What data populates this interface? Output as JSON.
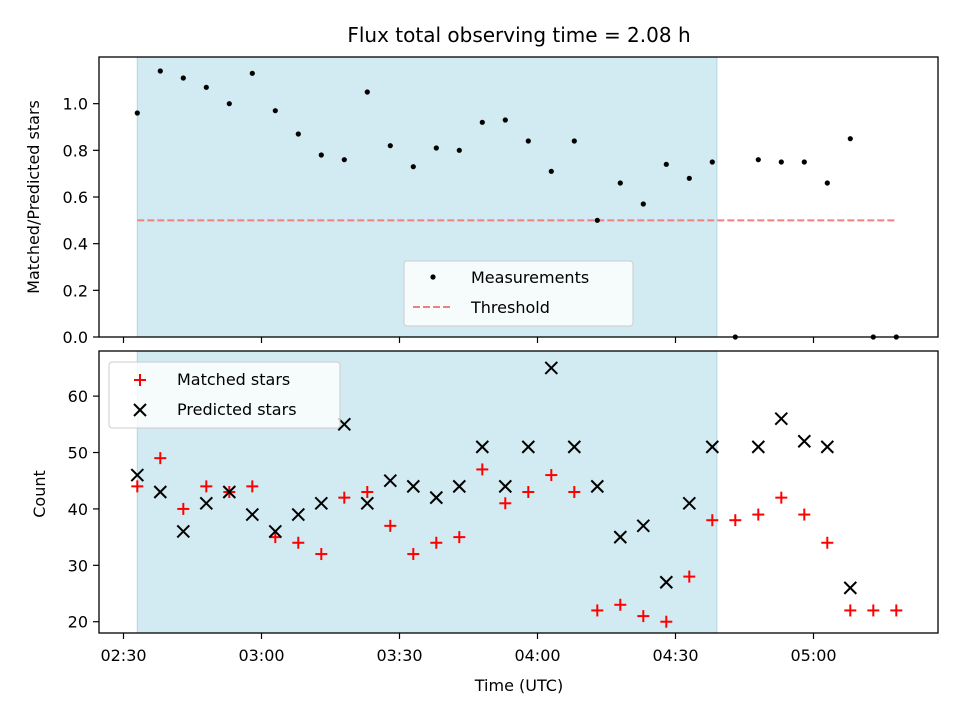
{
  "chart_data": [
    {
      "type": "scatter",
      "title": "Flux total observing time = 2.08 h",
      "xlabel": "",
      "ylabel": "Matched/Predicted stars",
      "ylim": [
        0,
        1.2
      ],
      "yticks": [
        0.0,
        0.2,
        0.4,
        0.6,
        0.8,
        1.0
      ],
      "ytick_labels": [
        "0.0",
        "0.2",
        "0.4",
        "0.6",
        "0.8",
        "1.0"
      ],
      "grid": false,
      "legend_position": "bottom-center",
      "shaded_span": {
        "start": "02:33",
        "end": "04:39",
        "color": "#add8e6"
      },
      "series": [
        {
          "name": "Measurements",
          "marker": "dot",
          "color": "#000000",
          "x": [
            "02:33",
            "02:38",
            "02:43",
            "02:48",
            "02:53",
            "02:58",
            "03:03",
            "03:08",
            "03:13",
            "03:18",
            "03:23",
            "03:28",
            "03:33",
            "03:38",
            "03:43",
            "03:48",
            "03:53",
            "03:58",
            "04:03",
            "04:08",
            "04:13",
            "04:18",
            "04:23",
            "04:28",
            "04:33",
            "04:38",
            "04:43",
            "04:48",
            "04:53",
            "04:58",
            "05:03",
            "05:08",
            "05:13",
            "05:18"
          ],
          "y": [
            0.96,
            1.14,
            1.11,
            1.07,
            1.0,
            1.13,
            0.97,
            0.87,
            0.78,
            0.76,
            1.05,
            0.82,
            0.73,
            0.81,
            0.8,
            0.92,
            0.93,
            0.84,
            0.71,
            0.84,
            0.5,
            0.66,
            0.57,
            0.74,
            0.68,
            0.75,
            0.0,
            0.76,
            0.75,
            0.75,
            0.66,
            0.85,
            0.0,
            0.0
          ]
        },
        {
          "name": "Threshold",
          "marker": "dashed-line",
          "color": "#f08080",
          "x": [
            "02:33",
            "05:18"
          ],
          "y": [
            0.5,
            0.5
          ]
        }
      ]
    },
    {
      "type": "scatter",
      "title": "",
      "xlabel": "Time (UTC)",
      "ylabel": "Count",
      "ylim": [
        18,
        68
      ],
      "yticks": [
        20,
        30,
        40,
        50,
        60
      ],
      "ytick_labels": [
        "20",
        "30",
        "40",
        "50",
        "60"
      ],
      "xticks": [
        "02:30",
        "03:00",
        "03:30",
        "04:00",
        "04:30",
        "05:00"
      ],
      "xtick_labels": [
        "02:30",
        "03:00",
        "03:30",
        "04:00",
        "04:30",
        "05:00"
      ],
      "grid": false,
      "legend_position": "top-left",
      "shaded_span": {
        "start": "02:33",
        "end": "04:39",
        "color": "#add8e6"
      },
      "series": [
        {
          "name": "Matched stars",
          "marker": "plus",
          "color": "#ff0000",
          "x": [
            "02:33",
            "02:38",
            "02:43",
            "02:48",
            "02:53",
            "02:58",
            "03:03",
            "03:08",
            "03:13",
            "03:18",
            "03:23",
            "03:28",
            "03:33",
            "03:38",
            "03:43",
            "03:48",
            "03:53",
            "03:58",
            "04:03",
            "04:08",
            "04:13",
            "04:18",
            "04:23",
            "04:28",
            "04:33",
            "04:38",
            "04:43",
            "04:48",
            "04:53",
            "04:58",
            "05:03",
            "05:08",
            "05:13",
            "05:18"
          ],
          "y": [
            44,
            49,
            40,
            44,
            43,
            44,
            35,
            34,
            32,
            42,
            43,
            37,
            32,
            34,
            35,
            47,
            41,
            43,
            46,
            43,
            22,
            23,
            21,
            20,
            28,
            38,
            38,
            39,
            42,
            39,
            34,
            22,
            22,
            22
          ]
        },
        {
          "name": "Predicted stars",
          "marker": "x",
          "color": "#000000",
          "x": [
            "02:33",
            "02:38",
            "02:43",
            "02:48",
            "02:53",
            "02:58",
            "03:03",
            "03:08",
            "03:13",
            "03:18",
            "03:23",
            "03:28",
            "03:33",
            "03:38",
            "03:43",
            "03:48",
            "03:53",
            "03:58",
            "04:03",
            "04:08",
            "04:13",
            "04:18",
            "04:23",
            "04:28",
            "04:33",
            "04:38",
            "04:48",
            "04:53",
            "04:58",
            "05:03",
            "05:08"
          ],
          "y": [
            46,
            43,
            36,
            41,
            43,
            39,
            36,
            39,
            41,
            55,
            41,
            45,
            44,
            42,
            44,
            51,
            44,
            51,
            65,
            51,
            44,
            35,
            37,
            27,
            41,
            51,
            51,
            56,
            52,
            51,
            26
          ]
        }
      ]
    }
  ]
}
